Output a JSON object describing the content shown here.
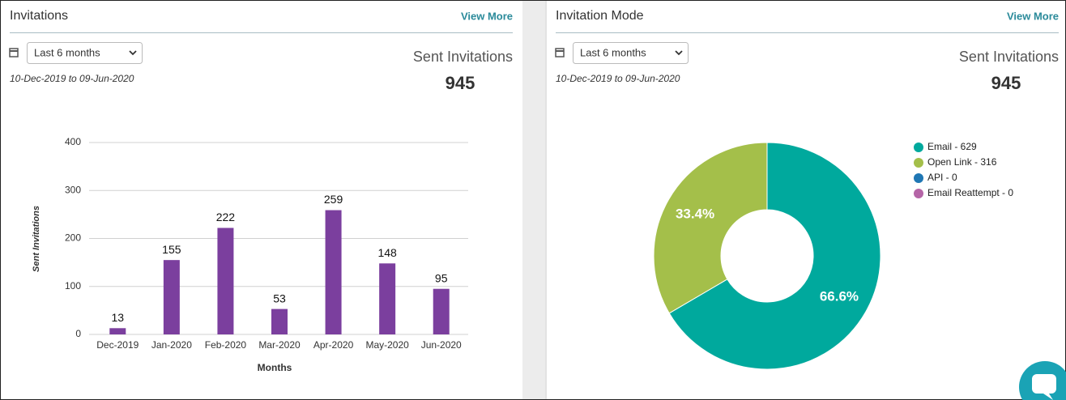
{
  "panels": [
    {
      "title": "Invitations",
      "link": "View More",
      "range_select": "Last 6 months",
      "date_range": "10-Dec-2019 to 09-Jun-2020",
      "stat_label": "Sent Invitations",
      "stat_value": 945
    },
    {
      "title": "Invitation Mode",
      "link": "View More",
      "range_select": "Last 6 months",
      "date_range": "10-Dec-2019 to 09-Jun-2020",
      "stat_label": "Sent Invitations",
      "stat_value": 945
    }
  ],
  "chart_data": [
    {
      "type": "bar",
      "categories": [
        "Dec-2019",
        "Jan-2020",
        "Feb-2020",
        "Mar-2020",
        "Apr-2020",
        "May-2020",
        "Jun-2020"
      ],
      "values": [
        13,
        155,
        222,
        53,
        259,
        148,
        95
      ],
      "color": "#7b3f9e",
      "xlabel": "Months",
      "ylabel": "Sent Invitations",
      "ylim": [
        0,
        400
      ],
      "yticks": [
        0,
        100,
        200,
        300,
        400
      ],
      "grid": true
    },
    {
      "type": "pie",
      "donut": true,
      "categories": [
        "Email",
        "Open Link",
        "API",
        "Email Reattempt"
      ],
      "values": [
        629,
        316,
        0,
        0
      ],
      "colors": [
        "#00a99d",
        "#a4bf4a",
        "#1f77b4",
        "#b565a7"
      ],
      "legend_labels": [
        "Email - 629",
        "Open Link - 316",
        "API - 0",
        "Email Reattempt - 0"
      ],
      "slice_labels": [
        "66.6%",
        "33.4%",
        null,
        null
      ],
      "legend": "right"
    }
  ]
}
